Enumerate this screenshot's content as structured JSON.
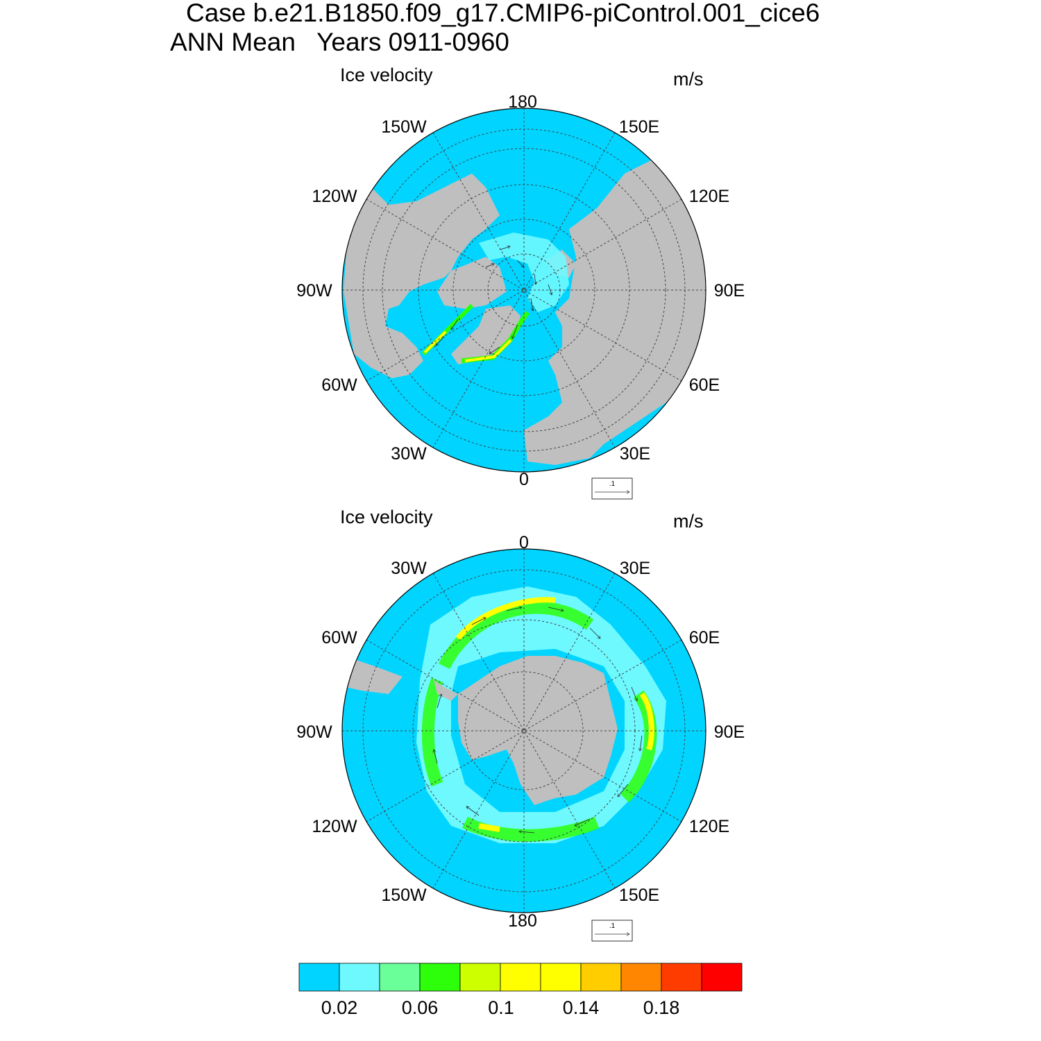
{
  "title": {
    "line1": "Case b.e21.B1850.f09_g17.CMIP6-piControl.001_cice6",
    "line2": "ANN Mean   Years 0911-0960"
  },
  "panels": [
    {
      "id": "north",
      "label_left": "Ice velocity",
      "label_right": "m/s",
      "hemisphere": "Northern Hemisphere polar stereographic",
      "lon_labels": [
        "180",
        "150E",
        "120E",
        "90E",
        "60E",
        "30E",
        "0",
        "30W",
        "60W",
        "90W",
        "120W",
        "150W"
      ],
      "ref_vector_label": ".1"
    },
    {
      "id": "south",
      "label_left": "Ice velocity",
      "label_right": "m/s",
      "hemisphere": "Southern Hemisphere polar stereographic",
      "lon_labels": [
        "0",
        "30E",
        "60E",
        "90E",
        "120E",
        "150E",
        "180",
        "150W",
        "120W",
        "90W",
        "60W",
        "30W"
      ],
      "ref_vector_label": ".1"
    }
  ],
  "colorbar": {
    "colors": [
      "#00d4ff",
      "#6ef9ff",
      "#6bff9a",
      "#2dff0a",
      "#cdff00",
      "#ffff00",
      "#ffff00",
      "#ffcd00",
      "#ff8600",
      "#ff3c00",
      "#ff0000"
    ],
    "tick_labels": [
      "0.02",
      "0.06",
      "0.1",
      "0.14",
      "0.18"
    ]
  },
  "colors": {
    "ocean": "#00d4ff",
    "land": "#bfbfbf",
    "no_data": "#ffffff",
    "grid": "#444444"
  }
}
